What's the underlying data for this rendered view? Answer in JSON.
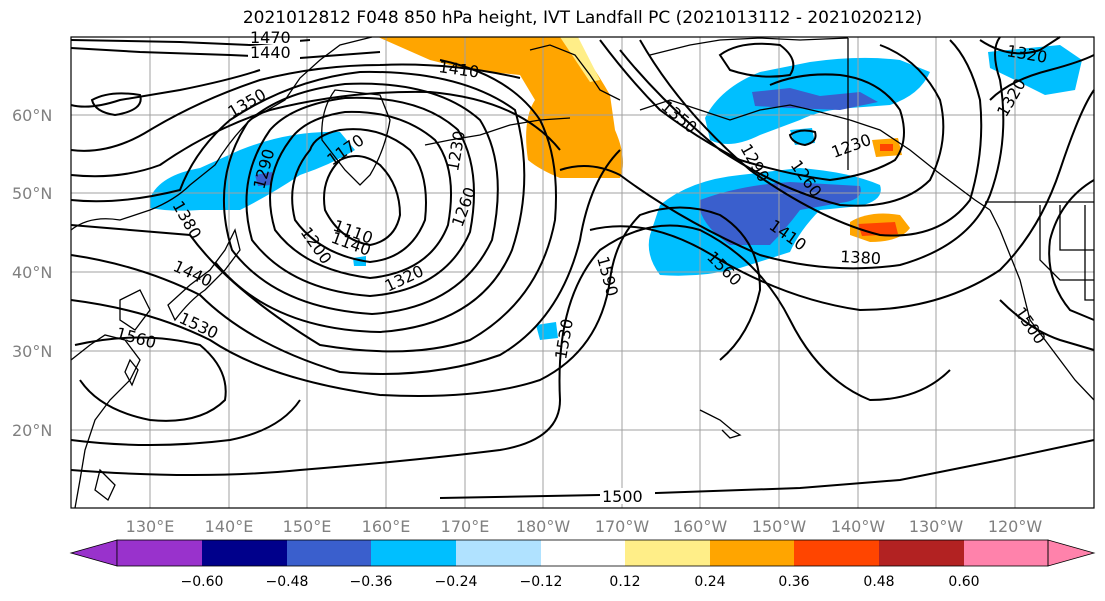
{
  "title": "2021012812 F048 850 hPa height, IVT Landfall PC (2021013112 - 2021020212)",
  "map": {
    "projection": "cylindrical",
    "lon_range": [
      120,
      -110
    ],
    "lat_range": [
      10,
      70
    ],
    "lat_labels": [
      "20°N",
      "30°N",
      "40°N",
      "50°N",
      "60°N"
    ],
    "lat_values": [
      20,
      30,
      40,
      50,
      60
    ],
    "lon_labels": [
      "130°E",
      "140°E",
      "150°E",
      "160°E",
      "170°E",
      "180°W",
      "170°W",
      "160°W",
      "150°W",
      "140°W",
      "130°W",
      "120°W"
    ],
    "grid": true
  },
  "contours": {
    "variable": "850 hPa height",
    "labels": [
      "1470",
      "1440",
      "1410",
      "1350",
      "1290",
      "1170",
      "1230",
      "1260",
      "1110",
      "1140",
      "1200",
      "1320",
      "1380",
      "1440",
      "1530",
      "1560",
      "1590",
      "1530",
      "1350",
      "1290",
      "1230",
      "1260",
      "1410",
      "1560",
      "1380",
      "1320",
      "1320",
      "1500",
      "1500"
    ]
  },
  "colorbar": {
    "ticks": [
      "−0.60",
      "−0.48",
      "−0.36",
      "−0.24",
      "−0.12",
      "0.12",
      "0.24",
      "0.36",
      "0.48",
      "0.60"
    ],
    "colors": [
      "#9932cc",
      "#00008b",
      "#3a5fcd",
      "#00bfff",
      "#b0e2ff",
      "#ffffff",
      "#ffee88",
      "#ffa500",
      "#ff4500",
      "#b22222",
      "#ff82ab"
    ]
  }
}
